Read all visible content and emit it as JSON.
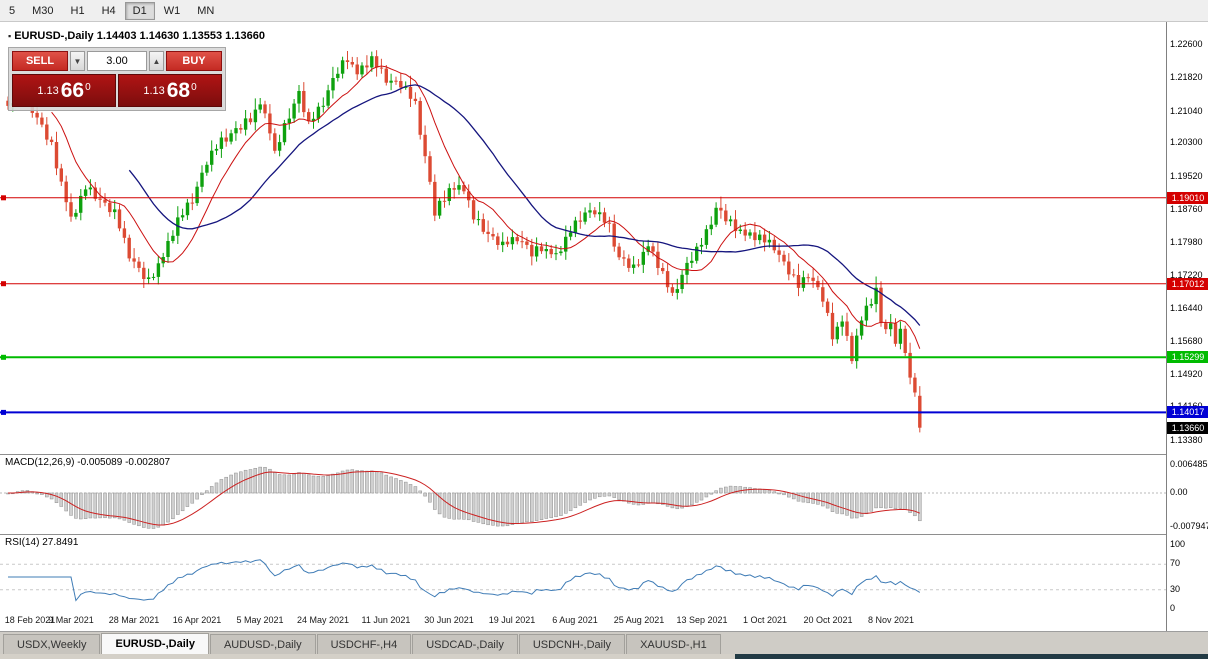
{
  "toolbar": {
    "timeframes": [
      "5",
      "M30",
      "H1",
      "H4",
      "D1",
      "W1",
      "MN"
    ],
    "active": "D1"
  },
  "chart": {
    "header_text": "EURUSD-,Daily 1.14403 1.14630 1.13553 1.13660",
    "symbol": "EURUSD-,Daily",
    "y_axis_labels": [
      "1.22600",
      "1.21820",
      "1.21040",
      "1.20300",
      "1.19520",
      "1.18760",
      "1.17980",
      "1.17220",
      "1.16440",
      "1.15680",
      "1.14920",
      "1.14160",
      "1.13380"
    ],
    "x_axis_labels": [
      "18 Feb 2021",
      "9 Mar 2021",
      "28 Mar 2021",
      "16 Apr 2021",
      "5 May 2021",
      "24 May 2021",
      "11 Jun 2021",
      "30 Jun 2021",
      "19 Jul 2021",
      "6 Aug 2021",
      "25 Aug 2021",
      "13 Sep 2021",
      "1 Oct 2021",
      "20 Oct 2021",
      "8 Nov 2021"
    ],
    "levels": [
      {
        "price": "1.19010",
        "color": "#d40000",
        "width": 1
      },
      {
        "price": "1.17012",
        "color": "#d40000",
        "width": 1
      },
      {
        "price": "1.15299",
        "color": "#00bb00",
        "width": 2
      },
      {
        "price": "1.14017",
        "color": "#0000d4",
        "width": 2
      }
    ],
    "current_price_tag": {
      "price": "1.13660",
      "color": "#000000"
    }
  },
  "trade_panel": {
    "sell_label": "SELL",
    "buy_label": "BUY",
    "volume": "3.00",
    "spin_down": "▼",
    "spin_up": "▲",
    "sell_price": {
      "big": "1.13",
      "pips": "66",
      "sup": "0"
    },
    "buy_price": {
      "big": "1.13",
      "pips": "68",
      "sup": "0"
    }
  },
  "macd": {
    "label": "MACD(12,26,9) -0.005089 -0.002807",
    "axis_labels": [
      "0.006485",
      "0.00",
      "-0.007947"
    ]
  },
  "rsi": {
    "label": "RSI(14) 27.8491",
    "axis_labels": [
      "100",
      "70",
      "30",
      "0"
    ]
  },
  "tabs": [
    {
      "label": "USDX,Weekly",
      "active": false
    },
    {
      "label": "EURUSD-,Daily",
      "active": true
    },
    {
      "label": "AUDUSD-,Daily",
      "active": false
    },
    {
      "label": "USDCHF-,H4",
      "active": false
    },
    {
      "label": "USDCAD-,Daily",
      "active": false
    },
    {
      "label": "USDCNH-,Daily",
      "active": false
    },
    {
      "label": "XAUUSD-,H1",
      "active": false
    }
  ],
  "chart_data": {
    "type": "candlestick",
    "symbol": "EURUSD",
    "timeframe": "Daily",
    "n_candles": 189,
    "bars_per_tick": 13,
    "y_range": [
      1.1305,
      1.231
    ],
    "ohlc_last": {
      "open": 1.14403,
      "high": 1.1463,
      "low": 1.13553,
      "close": 1.1366
    },
    "levels": [
      1.1901,
      1.17012,
      1.15299,
      1.14017
    ],
    "anchors": [
      [
        0,
        1.2115
      ],
      [
        3,
        1.2155
      ],
      [
        6,
        1.2085
      ],
      [
        9,
        1.202
      ],
      [
        13,
        1.185
      ],
      [
        16,
        1.1925
      ],
      [
        19,
        1.1895
      ],
      [
        22,
        1.1865
      ],
      [
        25,
        1.177
      ],
      [
        27,
        1.173
      ],
      [
        29,
        1.1705
      ],
      [
        32,
        1.1765
      ],
      [
        35,
        1.185
      ],
      [
        38,
        1.1895
      ],
      [
        41,
        1.1985
      ],
      [
        44,
        1.2035
      ],
      [
        47,
        1.2055
      ],
      [
        50,
        1.2085
      ],
      [
        52,
        1.212
      ],
      [
        54,
        1.206
      ],
      [
        55,
        1.2005
      ],
      [
        57,
        1.2065
      ],
      [
        60,
        1.2145
      ],
      [
        62,
        1.207
      ],
      [
        65,
        1.2125
      ],
      [
        68,
        1.2195
      ],
      [
        70,
        1.2225
      ],
      [
        72,
        1.219
      ],
      [
        75,
        1.2225
      ],
      [
        78,
        1.2175
      ],
      [
        81,
        1.2165
      ],
      [
        84,
        1.212
      ],
      [
        86,
        1.1995
      ],
      [
        88,
        1.1865
      ],
      [
        91,
        1.192
      ],
      [
        94,
        1.1925
      ],
      [
        96,
        1.1855
      ],
      [
        99,
        1.1815
      ],
      [
        102,
        1.179
      ],
      [
        105,
        1.181
      ],
      [
        108,
        1.177
      ],
      [
        110,
        1.1785
      ],
      [
        113,
        1.1765
      ],
      [
        116,
        1.1825
      ],
      [
        119,
        1.1865
      ],
      [
        121,
        1.187
      ],
      [
        124,
        1.1835
      ],
      [
        126,
        1.176
      ],
      [
        129,
        1.1735
      ],
      [
        132,
        1.179
      ],
      [
        135,
        1.1725
      ],
      [
        137,
        1.167
      ],
      [
        140,
        1.1745
      ],
      [
        143,
        1.1795
      ],
      [
        146,
        1.1875
      ],
      [
        149,
        1.184
      ],
      [
        152,
        1.1815
      ],
      [
        155,
        1.181
      ],
      [
        158,
        1.1785
      ],
      [
        161,
        1.173
      ],
      [
        163,
        1.1695
      ],
      [
        165,
        1.1725
      ],
      [
        168,
        1.1665
      ],
      [
        170,
        1.158
      ],
      [
        172,
        1.1615
      ],
      [
        174,
        1.153
      ],
      [
        176,
        1.162
      ],
      [
        178,
        1.166
      ],
      [
        179,
        1.169
      ],
      [
        180,
        1.1605
      ],
      [
        182,
        1.16
      ],
      [
        183,
        1.1565
      ],
      [
        184,
        1.159
      ],
      [
        185,
        1.155
      ],
      [
        186,
        1.148
      ],
      [
        187,
        1.144
      ],
      [
        188,
        1.1366
      ]
    ],
    "wiggle": [
      0.5,
      -0.8,
      1.0,
      -0.4,
      0.7,
      -1.1,
      0.3,
      0.9,
      -0.6,
      1.2,
      -0.9,
      0.4,
      -0.2,
      0.8,
      -1.0,
      0.6,
      -0.5,
      1.1,
      -0.7,
      0.2
    ],
    "wick": [
      0.6,
      1.5,
      0.9,
      2.1,
      1.1,
      0.5,
      1.7,
      0.8,
      1.3,
      0.4,
      1.9,
      0.7,
      1.0,
      1.6,
      0.5,
      1.2
    ],
    "indicators": {
      "ma_fast_period": 10,
      "ma_slow_period": 26,
      "macd": {
        "fast": 12,
        "slow": 26,
        "signal": 9,
        "current_values": [
          -0.005089,
          -0.002807
        ],
        "axis_range": [
          -0.007947,
          0.006485
        ]
      },
      "rsi": {
        "period": 14,
        "current_value": 27.8491,
        "levels": [
          30,
          70
        ]
      }
    },
    "colors": {
      "up": "#0ea10e",
      "down": "#dc4a33",
      "ma_fast": "#cc1111",
      "ma_slow": "#15157e",
      "macd_hist_fill": "#d0d0d0",
      "macd_hist_stroke": "#8f8f8f",
      "macd_signal": "#cc2222",
      "rsi_line": "#3f7cb6"
    }
  }
}
